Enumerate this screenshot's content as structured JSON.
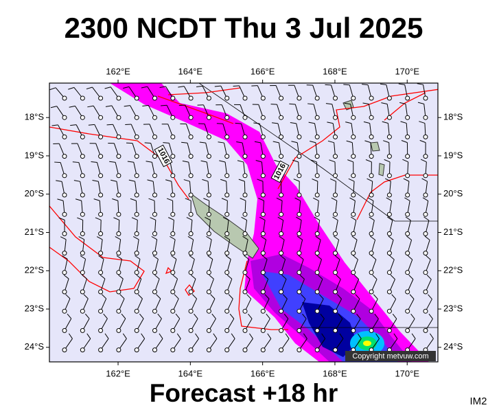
{
  "header": {
    "title": "2300 NCDT Thu 3 Jul 2025"
  },
  "footer": {
    "subtitle": "Forecast +18 hr",
    "code": "IM2"
  },
  "map": {
    "lonlim": [
      160.1,
      170.85
    ],
    "latlim": [
      -17.1,
      -24.38
    ],
    "lon_ticks": [
      {
        "value": 162,
        "label": "162°E"
      },
      {
        "value": 164,
        "label": "164°E"
      },
      {
        "value": 166,
        "label": "166°E"
      },
      {
        "value": 168,
        "label": "168°E"
      },
      {
        "value": 170,
        "label": "170°E"
      }
    ],
    "lat_ticks": [
      {
        "value": -18,
        "label": "18°S"
      },
      {
        "value": -19,
        "label": "19°S"
      },
      {
        "value": -20,
        "label": "20°S"
      },
      {
        "value": -21,
        "label": "21°S"
      },
      {
        "value": -22,
        "label": "22°S"
      },
      {
        "value": -23,
        "label": "23°S"
      },
      {
        "value": -24,
        "label": "24°S"
      }
    ],
    "contour_labels": [
      "1016",
      "1016"
    ],
    "credit": "Copyright metvuw.com"
  }
}
